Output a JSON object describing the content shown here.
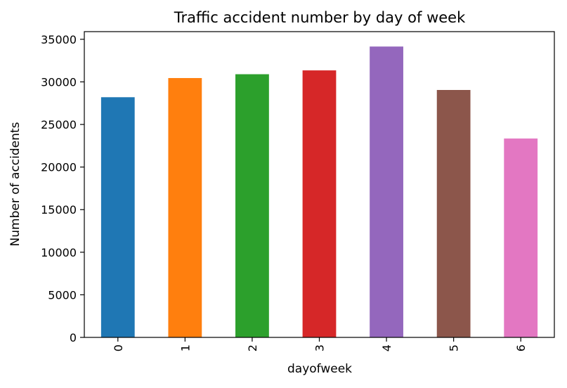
{
  "chart_data": {
    "type": "bar",
    "title": "Traffic accident number by day of week",
    "xlabel": "dayofweek",
    "ylabel": "Number of accidents",
    "categories": [
      "0",
      "1",
      "2",
      "3",
      "4",
      "5",
      "6"
    ],
    "values": [
      28200,
      30450,
      30900,
      31350,
      34150,
      29050,
      23350
    ],
    "colors": [
      "#1f77b4",
      "#ff7f0e",
      "#2ca02c",
      "#d62728",
      "#9467bd",
      "#8c564b",
      "#e377c2"
    ],
    "yticks": [
      0,
      5000,
      10000,
      15000,
      20000,
      25000,
      30000,
      35000
    ],
    "ylim": [
      0,
      35900
    ],
    "grid": false,
    "legend": "none"
  }
}
